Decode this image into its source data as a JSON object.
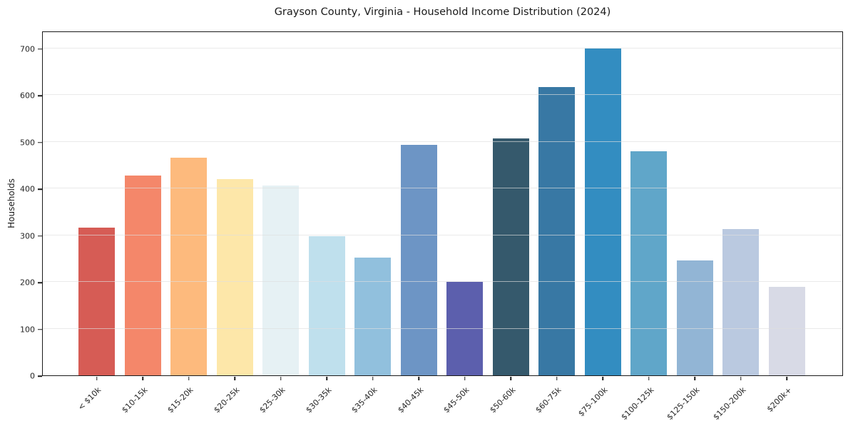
{
  "chart_data": {
    "type": "bar",
    "title": "Grayson County, Virginia - Household Income Distribution (2024)",
    "xlabel": "",
    "ylabel": "Households",
    "categories": [
      "< $10k",
      "$10-15k",
      "$15-20k",
      "$20-25k",
      "$25-30k",
      "$30-35k",
      "$35-40k",
      "$40-45k",
      "$45-50k",
      "$50-60k",
      "$60-75k",
      "$75-100k",
      "$100-125k",
      "$125-150k",
      "$150-200k",
      "$200k+"
    ],
    "values": [
      317,
      428,
      466,
      420,
      406,
      298,
      252,
      494,
      200,
      507,
      617,
      700,
      480,
      246,
      313,
      190
    ],
    "bar_colors": [
      "#d65c55",
      "#f4876a",
      "#fdba7d",
      "#fde7a9",
      "#e6f1f4",
      "#bfe0ed",
      "#91c0dd",
      "#6d95c5",
      "#5c5fad",
      "#35596c",
      "#3878a4",
      "#338dc1",
      "#60a6c9",
      "#92b5d5",
      "#bac9e0",
      "#d8dae6"
    ],
    "ylim": [
      0,
      700
    ],
    "yticks": [
      0,
      100,
      200,
      300,
      400,
      500,
      600,
      700
    ],
    "grid": "horizontal",
    "legend": "none",
    "colors": {
      "background": "#ffffff",
      "spine": "#1a1a1a",
      "gridline": "#dedede",
      "text": "#262626"
    }
  }
}
